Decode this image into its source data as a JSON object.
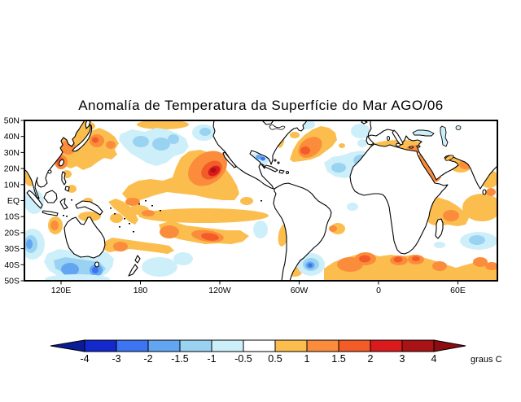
{
  "title": "Anomalía de Temperatura da Superfície do Mar AGO/06",
  "axes": {
    "lat_labels": [
      "50N",
      "40N",
      "30N",
      "20N",
      "10N",
      "EQ",
      "10S",
      "20S",
      "30S",
      "40S",
      "50S"
    ],
    "lon_labels": [
      "120E",
      "180",
      "120W",
      "60W",
      "0",
      "60E"
    ]
  },
  "colorbar": {
    "tick_labels": [
      "-4",
      "-3",
      "-2",
      "-1.5",
      "-1",
      "-0.5",
      "0.5",
      "1",
      "1.5",
      "2",
      "3",
      "4"
    ],
    "unit_label": "graus C",
    "segment_colors": [
      "#1328cd",
      "#3c74f2",
      "#62a6f2",
      "#9ad2f2",
      "#cdeffa",
      "#ffffff",
      "#fbbe4e",
      "#fb8c3b",
      "#f35b27",
      "#da1a1d",
      "#a91316"
    ],
    "left_arrow_color": "#0a1c96",
    "right_arrow_color": "#8b0d10"
  },
  "chart_data": {
    "type": "heatmap",
    "title": "Anomalía de Temperatura da Superfície do Mar AGO/06",
    "subtitle_month": "AGO/06",
    "units": "graus C",
    "projection": "Pacific-centered cylindrical, ~90E to ~90E",
    "lat_range": [
      "50S",
      "50N"
    ],
    "lon_ticks": [
      "120E",
      "180",
      "120W",
      "60W",
      "0",
      "60E"
    ],
    "contour_levels": [
      -4,
      -3,
      -2,
      -1.5,
      -1,
      -0.5,
      0.5,
      1,
      1.5,
      2,
      3,
      4
    ],
    "legend_position": "bottom",
    "grid": false,
    "palette": {
      "b5": "#1328cd",
      "b4": "#3c74f2",
      "b3": "#62a6f2",
      "b2": "#9ad2f2",
      "b1": "#cdeffa",
      "o1": "#fbbe4e",
      "o2": "#fb8c3b",
      "o3": "#f35b27",
      "r1": "#da1a1d",
      "r2": "#a91316"
    },
    "notable_anomalies": [
      {
        "region": "Northeast Pacific off Baja California (~125W,20N)",
        "anomaly_C": "+3 to +4"
      },
      {
        "region": "Kuroshio region east of Japan",
        "anomaly_C": "+1 to +2"
      },
      {
        "region": "Central North Pacific (~35-40N,160W)",
        "anomaly_C": "-0.5 to -1.5"
      },
      {
        "region": "South-central Pacific band (10S-25S)",
        "anomaly_C": "+0.5 to +2"
      },
      {
        "region": "South of Australia",
        "anomaly_C": "-1 to -2"
      },
      {
        "region": "Northwest Atlantic (~45N,40W)",
        "anomaly_C": "+1 to +2"
      },
      {
        "region": "Gulf of Mexico",
        "anomaly_C": "-0.5 to -2"
      },
      {
        "region": "Argentine Basin (~40S,45W)",
        "anomaly_C": "-1 to -3"
      },
      {
        "region": "South Atlantic / S Indian Ocean 40-50S band",
        "anomaly_C": "+1 to +3"
      },
      {
        "region": "Mediterranean Sea",
        "anomaly_C": "+0.5 to +1.5"
      },
      {
        "region": "Tropical Indian Ocean (10-20S)",
        "anomaly_C": "+0.5 to +1.5"
      }
    ],
    "regions": [
      {
        "c": "o1",
        "p": "62,160 75,157 88,162 100,159 112,161 122,157 133,162 141,168 146,176 141,184 144,190 137,196 128,194 120,199 112,205 102,209 94,204 87,207 79,204 70,200 66,192 70,184 63,176 60,168"
      },
      {
        "c": "o1",
        "e": [
          105,
          155,
          12,
          6,
          0
        ]
      },
      {
        "c": "o1",
        "e": [
          200,
          153,
          32,
          6,
          0
        ]
      },
      {
        "c": "o2",
        "e": [
          84,
          181,
          9,
          9,
          0
        ]
      },
      {
        "c": "o2",
        "e": [
          119,
          173,
          9,
          8,
          0
        ]
      },
      {
        "c": "o2",
        "e": [
          136,
          178,
          6,
          5,
          0
        ]
      },
      {
        "c": "o3",
        "e": [
          117,
          172,
          4,
          3.5,
          0
        ]
      },
      {
        "c": "o2",
        "e": [
          75,
          199,
          8,
          9,
          0
        ]
      },
      {
        "c": "o3",
        "e": [
          74,
          199,
          4.5,
          6,
          15
        ]
      },
      {
        "c": "b1",
        "p": "148,165 162,159 178,162 192,157 205,159 218,164 228,170 232,180 226,188 214,192 204,200 192,204 180,200 170,194 160,188 152,180 146,172"
      },
      {
        "c": "b1",
        "e": [
          250,
          163,
          14,
          10,
          0
        ]
      },
      {
        "c": "b2",
        "e": [
          173,
          174,
          10,
          7,
          0
        ]
      },
      {
        "c": "b2",
        "e": [
          198,
          177,
          11,
          8,
          0
        ]
      },
      {
        "c": "b2",
        "e": [
          213,
          171,
          7,
          6,
          0
        ]
      },
      {
        "c": "b2",
        "e": [
          252,
          162,
          7,
          5,
          0
        ]
      },
      {
        "c": "o1",
        "p": "150,238 158,228 170,222 185,220 200,222 212,218 216,206 222,194 232,186 246,184 258,188 268,196 276,206 284,216 291,228 294,238 288,246 274,246 258,244 240,240 222,238 205,236 190,240 172,246 158,247"
      },
      {
        "c": "o2",
        "e": [
          255,
          207,
          26,
          19,
          -35
        ]
      },
      {
        "c": "o3",
        "e": [
          260,
          209,
          14,
          10,
          -35
        ]
      },
      {
        "c": "r1",
        "e": [
          263,
          210,
          8,
          5.5,
          -35
        ]
      },
      {
        "c": "r2",
        "e": [
          262,
          209,
          3.5,
          3,
          0
        ]
      },
      {
        "c": "o1",
        "e": [
          303,
          247,
          8,
          5,
          0
        ]
      },
      {
        "c": "o2",
        "e": [
          163,
          248,
          9,
          5,
          0
        ]
      },
      {
        "c": "o1",
        "e": [
          250,
          265,
          80,
          9,
          0
        ]
      },
      {
        "c": "o1",
        "p": "195,276 210,271 228,277 244,279 262,281 278,283 295,283 306,290 298,297 284,300 268,299 252,300 236,297 220,294 208,290 198,284"
      },
      {
        "c": "o1",
        "e": [
          170,
          258,
          13,
          6,
          0
        ]
      },
      {
        "c": "o2",
        "e": [
          182,
          262,
          8,
          4,
          0
        ]
      },
      {
        "c": "o2",
        "e": [
          208,
          285,
          12,
          8,
          0
        ]
      },
      {
        "c": "o2",
        "e": [
          255,
          290,
          20,
          7,
          8
        ]
      },
      {
        "c": "o3",
        "e": [
          258,
          291,
          11,
          4.5,
          8
        ]
      },
      {
        "c": "b1",
        "e": [
          320,
          282,
          9,
          11,
          0
        ]
      },
      {
        "c": "o1",
        "p": "133,248 142,244 152,248 160,254 166,262 170,270 166,276 158,272 150,264 140,256"
      },
      {
        "c": "o1",
        "e": [
          143,
          268,
          8,
          6,
          0
        ]
      },
      {
        "c": "o1",
        "p": "126,298 138,292 152,294 166,296 180,298 196,300 208,302 214,308 206,312 192,310 176,308 160,306 146,308 134,310 126,306"
      },
      {
        "c": "o2",
        "e": [
          148,
          303,
          9,
          6,
          0
        ]
      },
      {
        "c": "o1",
        "e": [
          68,
          277,
          9,
          11,
          0
        ]
      },
      {
        "c": "o2",
        "e": [
          67,
          277,
          5,
          6,
          0
        ]
      },
      {
        "c": "o1",
        "e": [
          110,
          266,
          14,
          6,
          0
        ]
      },
      {
        "c": "o1",
        "e": [
          82,
          214,
          6,
          5,
          0
        ]
      },
      {
        "c": "o1",
        "e": [
          88,
          232,
          6,
          5,
          0
        ]
      },
      {
        "c": "o1",
        "e": [
          108,
          247,
          6,
          4,
          0
        ]
      },
      {
        "c": "b1",
        "p": "58,312 72,306 88,308 104,306 118,308 132,310 140,318 138,328 132,336 120,342 104,344 88,344 72,340 60,332 54,322"
      },
      {
        "c": "b2",
        "p": "66,320 80,316 94,318 108,320 122,322 130,330 124,338 110,340 94,340 80,336 68,330"
      },
      {
        "c": "b3",
        "e": [
          86,
          331,
          11,
          8,
          0
        ]
      },
      {
        "c": "b3",
        "e": [
          118,
          332,
          8,
          7,
          0
        ]
      },
      {
        "c": "b4",
        "e": [
          117,
          332,
          4,
          4,
          0
        ]
      },
      {
        "c": "b1",
        "e": [
          196,
          328,
          22,
          12,
          0
        ]
      },
      {
        "c": "b1",
        "e": [
          225,
          318,
          12,
          8,
          0
        ]
      },
      {
        "c": "b1",
        "e": [
          40,
          300,
          15,
          19,
          0
        ]
      },
      {
        "c": "b2",
        "e": [
          38,
          300,
          8,
          11,
          0
        ]
      },
      {
        "c": "b3",
        "e": [
          36,
          300,
          4,
          6,
          0
        ]
      },
      {
        "c": "b1",
        "e": [
          95,
          343,
          40,
          6,
          0
        ]
      },
      {
        "c": "b1",
        "e": [
          42,
          248,
          12,
          15,
          0
        ]
      },
      {
        "c": "o1",
        "p": "518,248 528,241 540,243 552,247 562,253 570,260 576,268 572,276 562,278 550,276 540,278 530,276 522,270 516,262 514,254"
      },
      {
        "c": "o2",
        "e": [
          554,
          265,
          10,
          7,
          0
        ]
      },
      {
        "c": "o1",
        "e": [
          592,
          255,
          24,
          17,
          0
        ]
      },
      {
        "c": "o2",
        "e": [
          603,
          236,
          6,
          5,
          0
        ]
      },
      {
        "c": "o1",
        "e": [
          601,
          220,
          12,
          11,
          0
        ]
      },
      {
        "c": "o1",
        "e": [
          37,
          215,
          8,
          14,
          0
        ]
      },
      {
        "c": "o1",
        "e": [
          566,
          201,
          15,
          11,
          0
        ]
      },
      {
        "c": "o2",
        "e": [
          572,
          202,
          8,
          6,
          0
        ]
      },
      {
        "c": "b1",
        "e": [
          588,
          296,
          23,
          11,
          0
        ]
      },
      {
        "c": "b2",
        "e": [
          586,
          295,
          10,
          6,
          0
        ]
      },
      {
        "c": "b2",
        "e": [
          513,
          251,
          5,
          4,
          0
        ]
      },
      {
        "c": "b1",
        "e": [
          540,
          301,
          7,
          4,
          0
        ]
      },
      {
        "c": "o1",
        "p": "398,330 410,322 424,317 438,313 452,311 466,315 480,313 494,315 508,313 522,317 536,321 548,325 560,329 574,325 588,321 602,323 611,327 611,345 398,345"
      },
      {
        "c": "o2",
        "e": [
          430,
          325,
          16,
          9,
          0
        ]
      },
      {
        "c": "o2",
        "e": [
          449,
          318,
          13,
          8,
          0
        ]
      },
      {
        "c": "o3",
        "e": [
          448,
          318,
          7,
          4.5,
          0
        ]
      },
      {
        "c": "o2",
        "e": [
          490,
          320,
          11,
          6,
          0
        ]
      },
      {
        "c": "o3",
        "e": [
          489,
          319,
          5.5,
          3.5,
          0
        ]
      },
      {
        "c": "o2",
        "e": [
          511,
          319,
          10,
          6,
          0
        ]
      },
      {
        "c": "o3",
        "e": [
          511,
          318,
          5,
          3,
          0
        ]
      },
      {
        "c": "o2",
        "e": [
          540,
          327,
          9,
          6,
          0
        ]
      },
      {
        "c": "o2",
        "e": [
          590,
          322,
          9,
          6,
          0
        ]
      },
      {
        "c": "o2",
        "e": [
          604,
          327,
          8,
          5,
          0
        ]
      },
      {
        "c": "o1",
        "e": [
          415,
          281,
          9,
          7,
          0
        ]
      },
      {
        "c": "o2",
        "e": [
          409,
          281,
          5,
          4,
          0
        ]
      },
      {
        "c": "o1",
        "e": [
          348,
          289,
          6,
          14,
          10
        ]
      },
      {
        "c": "o1",
        "e": [
          362,
          334,
          9,
          6,
          0
        ]
      },
      {
        "c": "o1",
        "p": "356,196 360,184 366,174 374,166 384,159 394,155 404,157 412,163 414,172 408,180 400,186 392,192 382,196 370,198 360,199"
      },
      {
        "c": "o2",
        "e": [
          381,
          181,
          16,
          11,
          -35
        ]
      },
      {
        "c": "o3",
        "e": [
          375,
          185,
          6,
          5,
          0
        ]
      },
      {
        "c": "o1",
        "e": [
          362,
          166,
          6,
          4,
          0
        ]
      },
      {
        "c": "o1",
        "e": [
          345,
          174,
          4,
          8,
          15
        ]
      },
      {
        "c": "o1",
        "e": [
          420,
          179,
          4,
          3,
          0
        ]
      },
      {
        "c": "b1",
        "e": [
          377,
          153,
          10,
          6,
          0
        ]
      },
      {
        "c": "b1",
        "e": [
          443,
          161,
          12,
          9,
          0
        ]
      },
      {
        "c": "b1",
        "e": [
          445,
          176,
          6,
          5,
          0
        ]
      },
      {
        "c": "b1",
        "p": "398,200 408,193 420,191 432,187 444,185 456,189 462,197 458,207 448,213 436,215 424,219 412,217 402,211"
      },
      {
        "c": "b2",
        "e": [
          416,
          206,
          9,
          6,
          0
        ]
      },
      {
        "c": "b2",
        "e": [
          444,
          197,
          10,
          7,
          0
        ]
      },
      {
        "c": "b1",
        "e": [
          316,
          196,
          15,
          8,
          0
        ]
      },
      {
        "c": "b3",
        "e": [
          318,
          193,
          4,
          3,
          0
        ]
      },
      {
        "c": "b4",
        "e": [
          323,
          195,
          3,
          2.5,
          0
        ]
      },
      {
        "c": "b1",
        "e": [
          360,
          264,
          12,
          8,
          0
        ]
      },
      {
        "c": "b1",
        "e": [
          433,
          254,
          7,
          5,
          0
        ]
      },
      {
        "c": "b1",
        "e": [
          382,
          325,
          17,
          14,
          0
        ]
      },
      {
        "c": "b2",
        "e": [
          382,
          325,
          10,
          8,
          0
        ]
      },
      {
        "c": "b3",
        "e": [
          381,
          326,
          5.5,
          4.5,
          0
        ]
      },
      {
        "c": "b4",
        "e": [
          381,
          326,
          2.8,
          2.5,
          0
        ]
      },
      {
        "c": "o1",
        "e": [
          492,
          181,
          38,
          9,
          0
        ]
      },
      {
        "c": "o2",
        "e": [
          512,
          183,
          13,
          5,
          0
        ]
      },
      {
        "c": "o2",
        "e": [
          527,
          206,
          13,
          20,
          -35
        ]
      },
      {
        "c": "o1",
        "e": [
          552,
          194,
          10,
          6,
          0
        ]
      }
    ]
  }
}
